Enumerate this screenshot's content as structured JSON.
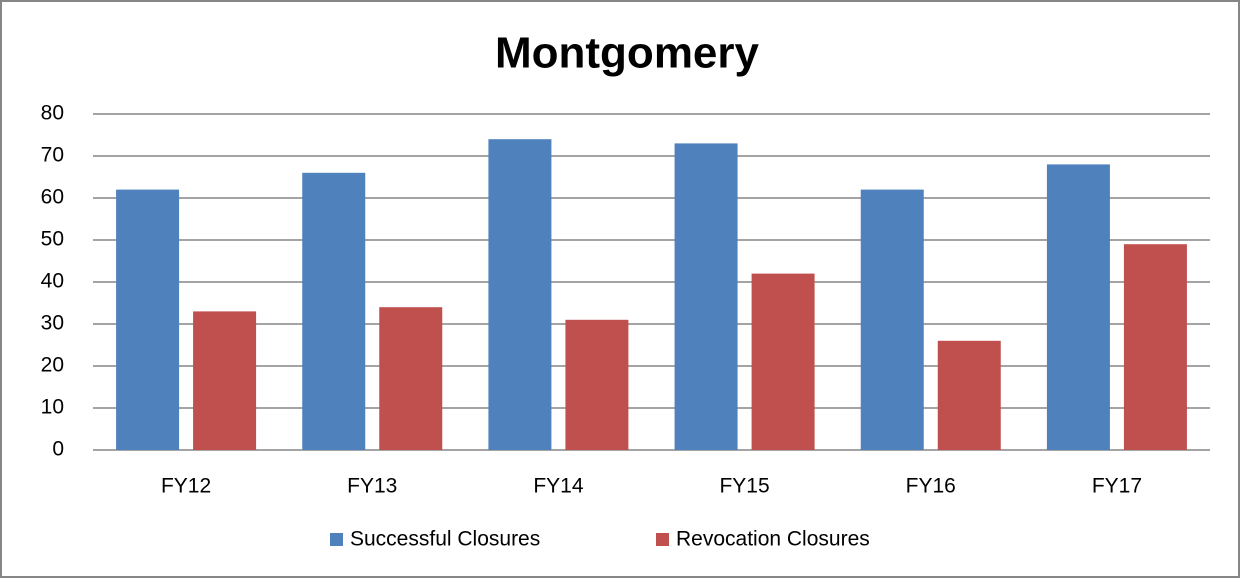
{
  "chart_data": {
    "type": "bar",
    "title": "Montgomery",
    "categories": [
      "FY12",
      "FY13",
      "FY14",
      "FY15",
      "FY16",
      "FY17"
    ],
    "series": [
      {
        "name": "Successful Closures",
        "color": "#4f81bd",
        "values": [
          62,
          66,
          74,
          73,
          62,
          68
        ]
      },
      {
        "name": "Revocation Closures",
        "color": "#c0504d",
        "values": [
          33,
          34,
          31,
          42,
          26,
          49
        ]
      }
    ],
    "ylim": [
      0,
      80
    ],
    "yticks": [
      0,
      10,
      20,
      30,
      40,
      50,
      60,
      70,
      80
    ],
    "grid": true,
    "legend": "bottom"
  }
}
